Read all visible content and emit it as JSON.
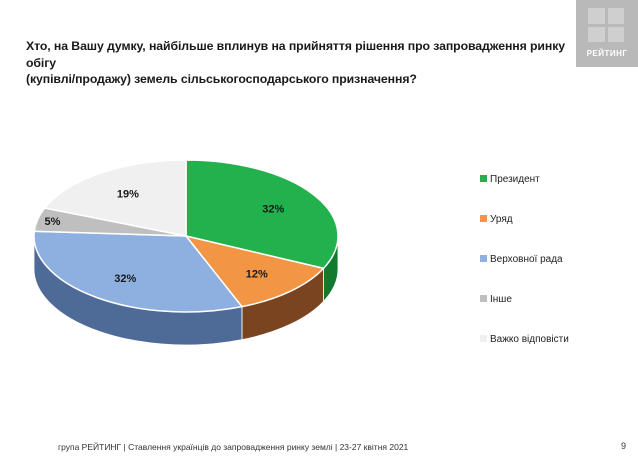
{
  "header": {
    "title_line1": "Хто, на Вашу думку, найбільше вплинув на прийняття рішення про запровадження ринку обігу",
    "title_line2": "(купівлі/продажу) земель сільськогосподарського призначення?",
    "logo_text": "РЕЙТИНГ"
  },
  "chart_data": {
    "type": "pie",
    "title": "",
    "categories": [
      "Президент",
      "Уряд",
      "Верховної рада",
      "Інше",
      "Важко відповісти"
    ],
    "values": [
      32,
      12,
      32,
      5,
      19
    ],
    "labels": [
      "32%",
      "12%",
      "32%",
      "5%",
      "19%"
    ],
    "colors": [
      "#22b14c",
      "#f29646",
      "#8eb0e0",
      "#bfbfbf",
      "#f0f0f0"
    ],
    "side_colors": [
      "#127a2f",
      "#7a4420",
      "#4e6a96",
      "#8a8a8a",
      "#b8b8b8"
    ],
    "legend_position": "right",
    "style": "3d"
  },
  "footer": {
    "text": "група РЕЙТИНГ | Ставлення українців до запровадження ринку землі  | 23-27 квітня 2021",
    "page_number": "9"
  }
}
